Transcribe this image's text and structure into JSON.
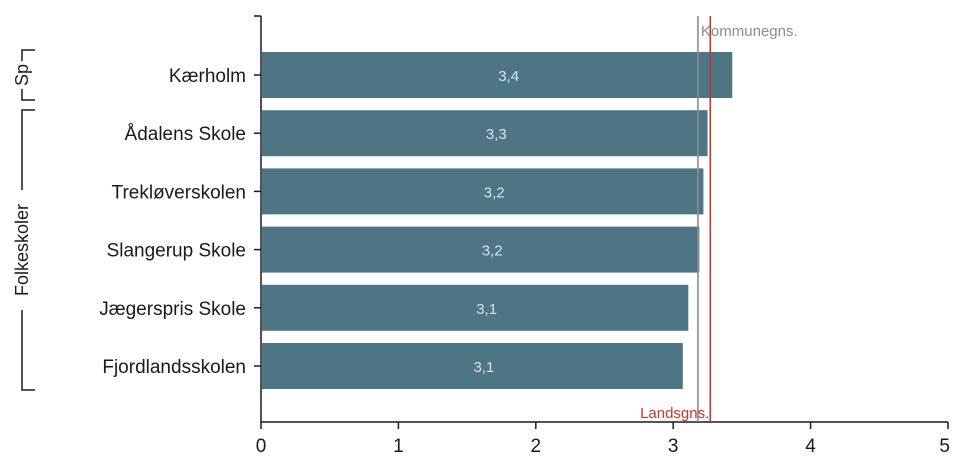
{
  "chart_data": {
    "type": "bar",
    "orientation": "horizontal",
    "title": "",
    "xlabel": "",
    "ylabel": "",
    "xlim": [
      0,
      5
    ],
    "x_ticks": [
      "0",
      "1",
      "2",
      "3",
      "4",
      "5"
    ],
    "grid": false,
    "categories": [
      "Kærholm",
      "Ådalens Skole",
      "Trekløverskolen",
      "Slangerup Skole",
      "Jægerspris Skole",
      "Fjordlandsskolen"
    ],
    "values": [
      3.43,
      3.25,
      3.22,
      3.19,
      3.11,
      3.07
    ],
    "data_labels": [
      "3,4",
      "3,3",
      "3,2",
      "3,2",
      "3,1",
      "3,1"
    ],
    "groups": [
      {
        "label": "Sp",
        "categories": [
          "Kærholm"
        ]
      },
      {
        "label": "Folkeskoler",
        "categories": [
          "Ådalens Skole",
          "Trekløverskolen",
          "Slangerup Skole",
          "Jægerspris Skole",
          "Fjordlandsskolen"
        ]
      }
    ],
    "reference_lines": [
      {
        "label": "Kommunegns.",
        "value": 3.18,
        "color": "#8c8c8c",
        "label_position": "top"
      },
      {
        "label": "Landsgns.",
        "value": 3.27,
        "color": "#c0392b",
        "label_position": "bottom"
      }
    ],
    "colors": {
      "bar": "#4e7584",
      "axis": "#1a1a1a",
      "bar_label": "#d9e3e8"
    }
  }
}
